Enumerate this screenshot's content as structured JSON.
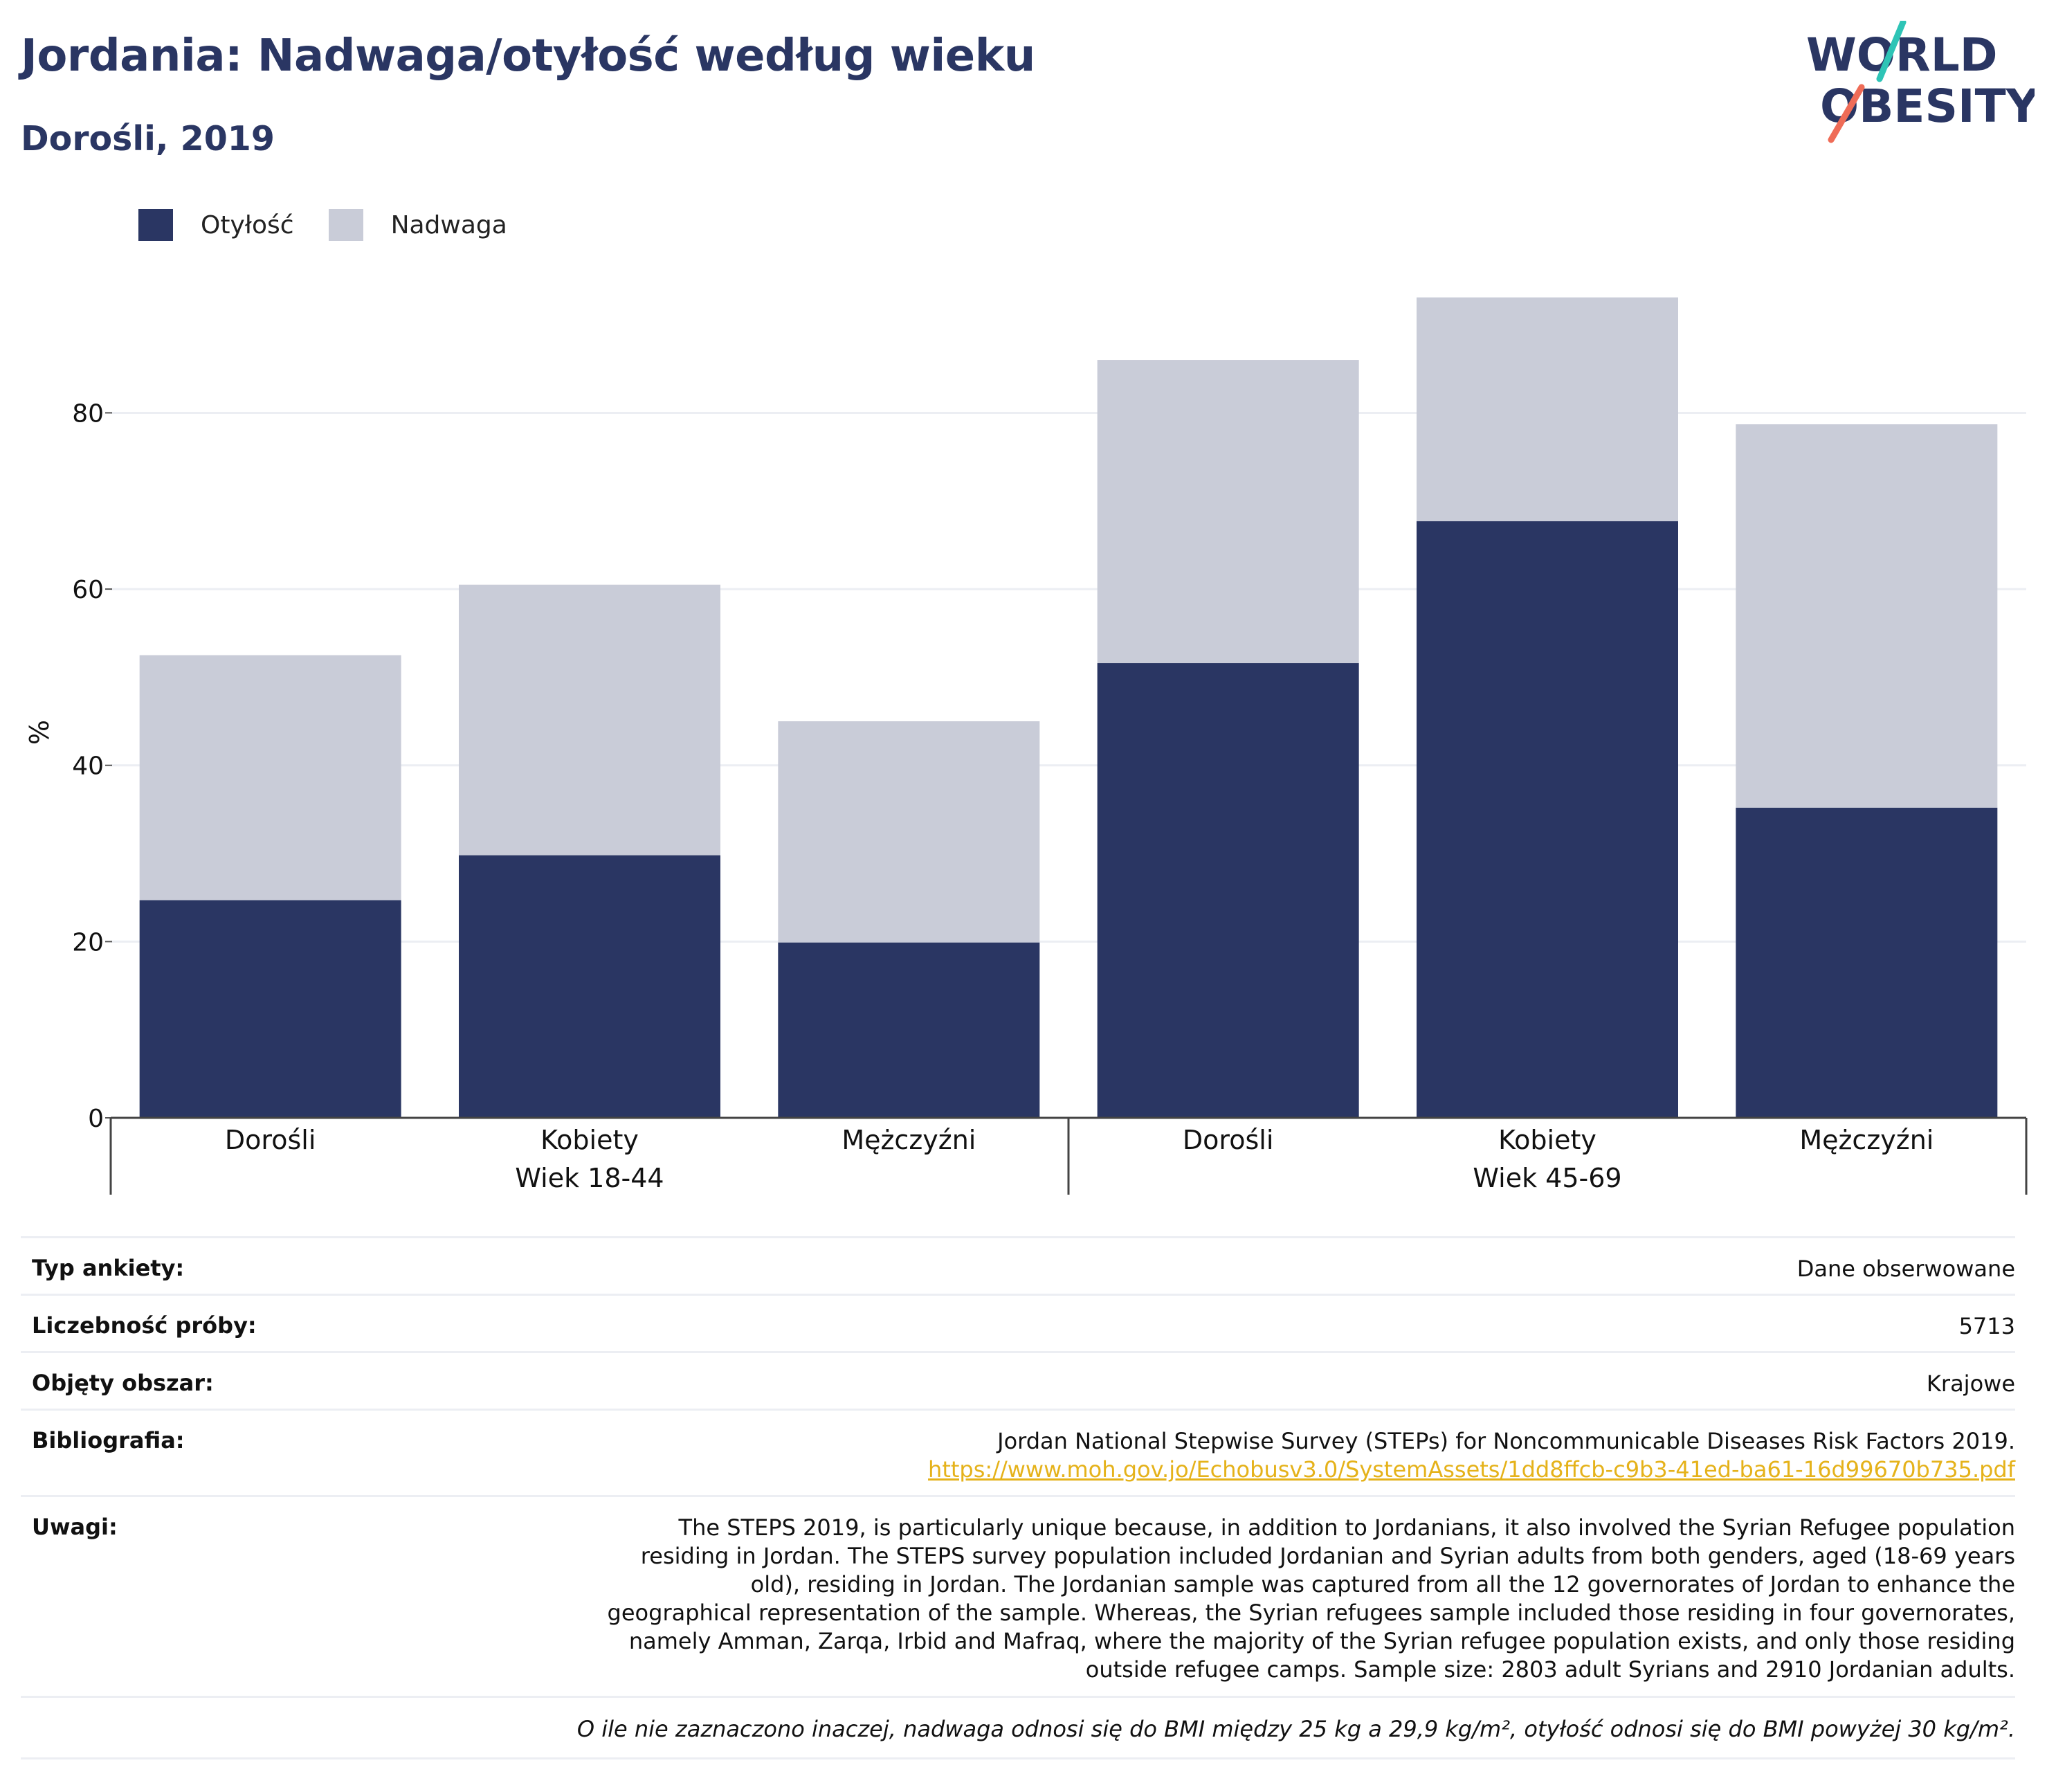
{
  "header": {
    "title": "Jordania: Nadwaga/otyłość według wieku",
    "subtitle": "Dorośli, 2019"
  },
  "logo": {
    "line1": "WORLD",
    "line2": "OBESITY"
  },
  "colors": {
    "title": "#2a3663",
    "obesity": "#2a3663",
    "overweight": "#c9ccd8",
    "grid": "#eceef3",
    "logo_teal": "#2ec4b6",
    "logo_coral": "#ef6c57",
    "link": "#e5b21a"
  },
  "chart_data": {
    "type": "bar",
    "stacked": true,
    "ylabel": "%",
    "ylim": [
      0,
      97
    ],
    "yticks": [
      0,
      20,
      40,
      60,
      80
    ],
    "grid": true,
    "legend_position": "top-left",
    "categories": [
      "Dorośli",
      "Kobiety",
      "Mężczyźni",
      "Dorośli",
      "Kobiety",
      "Mężczyźni"
    ],
    "groups": [
      {
        "label": "Wiek 18-44",
        "span": 3
      },
      {
        "label": "Wiek 45-69",
        "span": 3
      }
    ],
    "series": [
      {
        "name": "Otyłość",
        "color": "#2a3663",
        "values": [
          24.7,
          29.8,
          19.9,
          51.6,
          67.7,
          35.2
        ]
      },
      {
        "name": "Nadwaga",
        "color": "#c9ccd8",
        "values": [
          27.8,
          30.7,
          25.1,
          34.4,
          25.4,
          43.5
        ]
      }
    ]
  },
  "info": {
    "survey_type": {
      "label": "Typ ankiety:",
      "value": "Dane obserwowane"
    },
    "sample_size": {
      "label": "Liczebność próby:",
      "value": "5713"
    },
    "area": {
      "label": "Objęty obszar:",
      "value": "Krajowe"
    },
    "bibliography": {
      "label": "Bibliografia:",
      "value": "Jordan National Stepwise Survey (STEPs) for Noncommunicable Diseases Risk Factors 2019.",
      "link": "https://www.moh.gov.jo/Echobusv3.0/SystemAssets/1dd8ffcb-c9b3-41ed-ba61-16d99670b735.pdf"
    },
    "notes": {
      "label": "Uwagi:",
      "value": "The STEPS 2019, is particularly unique because, in addition to Jordanians, it also involved the Syrian Refugee population residing in Jordan. The STEPS survey population included Jordanian and Syrian adults from both genders, aged (18-69 years old), residing in Jordan. The Jordanian sample was captured from all the 12 governorates of Jordan to enhance the geographical representation of the sample. Whereas, the Syrian refugees sample included those residing in four governorates, namely Amman, Zarqa, Irbid and Mafraq, where the majority of the Syrian refugee population exists, and only those residing outside refugee camps. Sample size: 2803 adult Syrians and 2910 Jordanian adults."
    },
    "footnote": "O ile nie zaznaczono inaczej, nadwaga odnosi się do BMI między 25 kg a 29,9 kg/m², otyłość odnosi się do BMI powyżej 30 kg/m²."
  }
}
